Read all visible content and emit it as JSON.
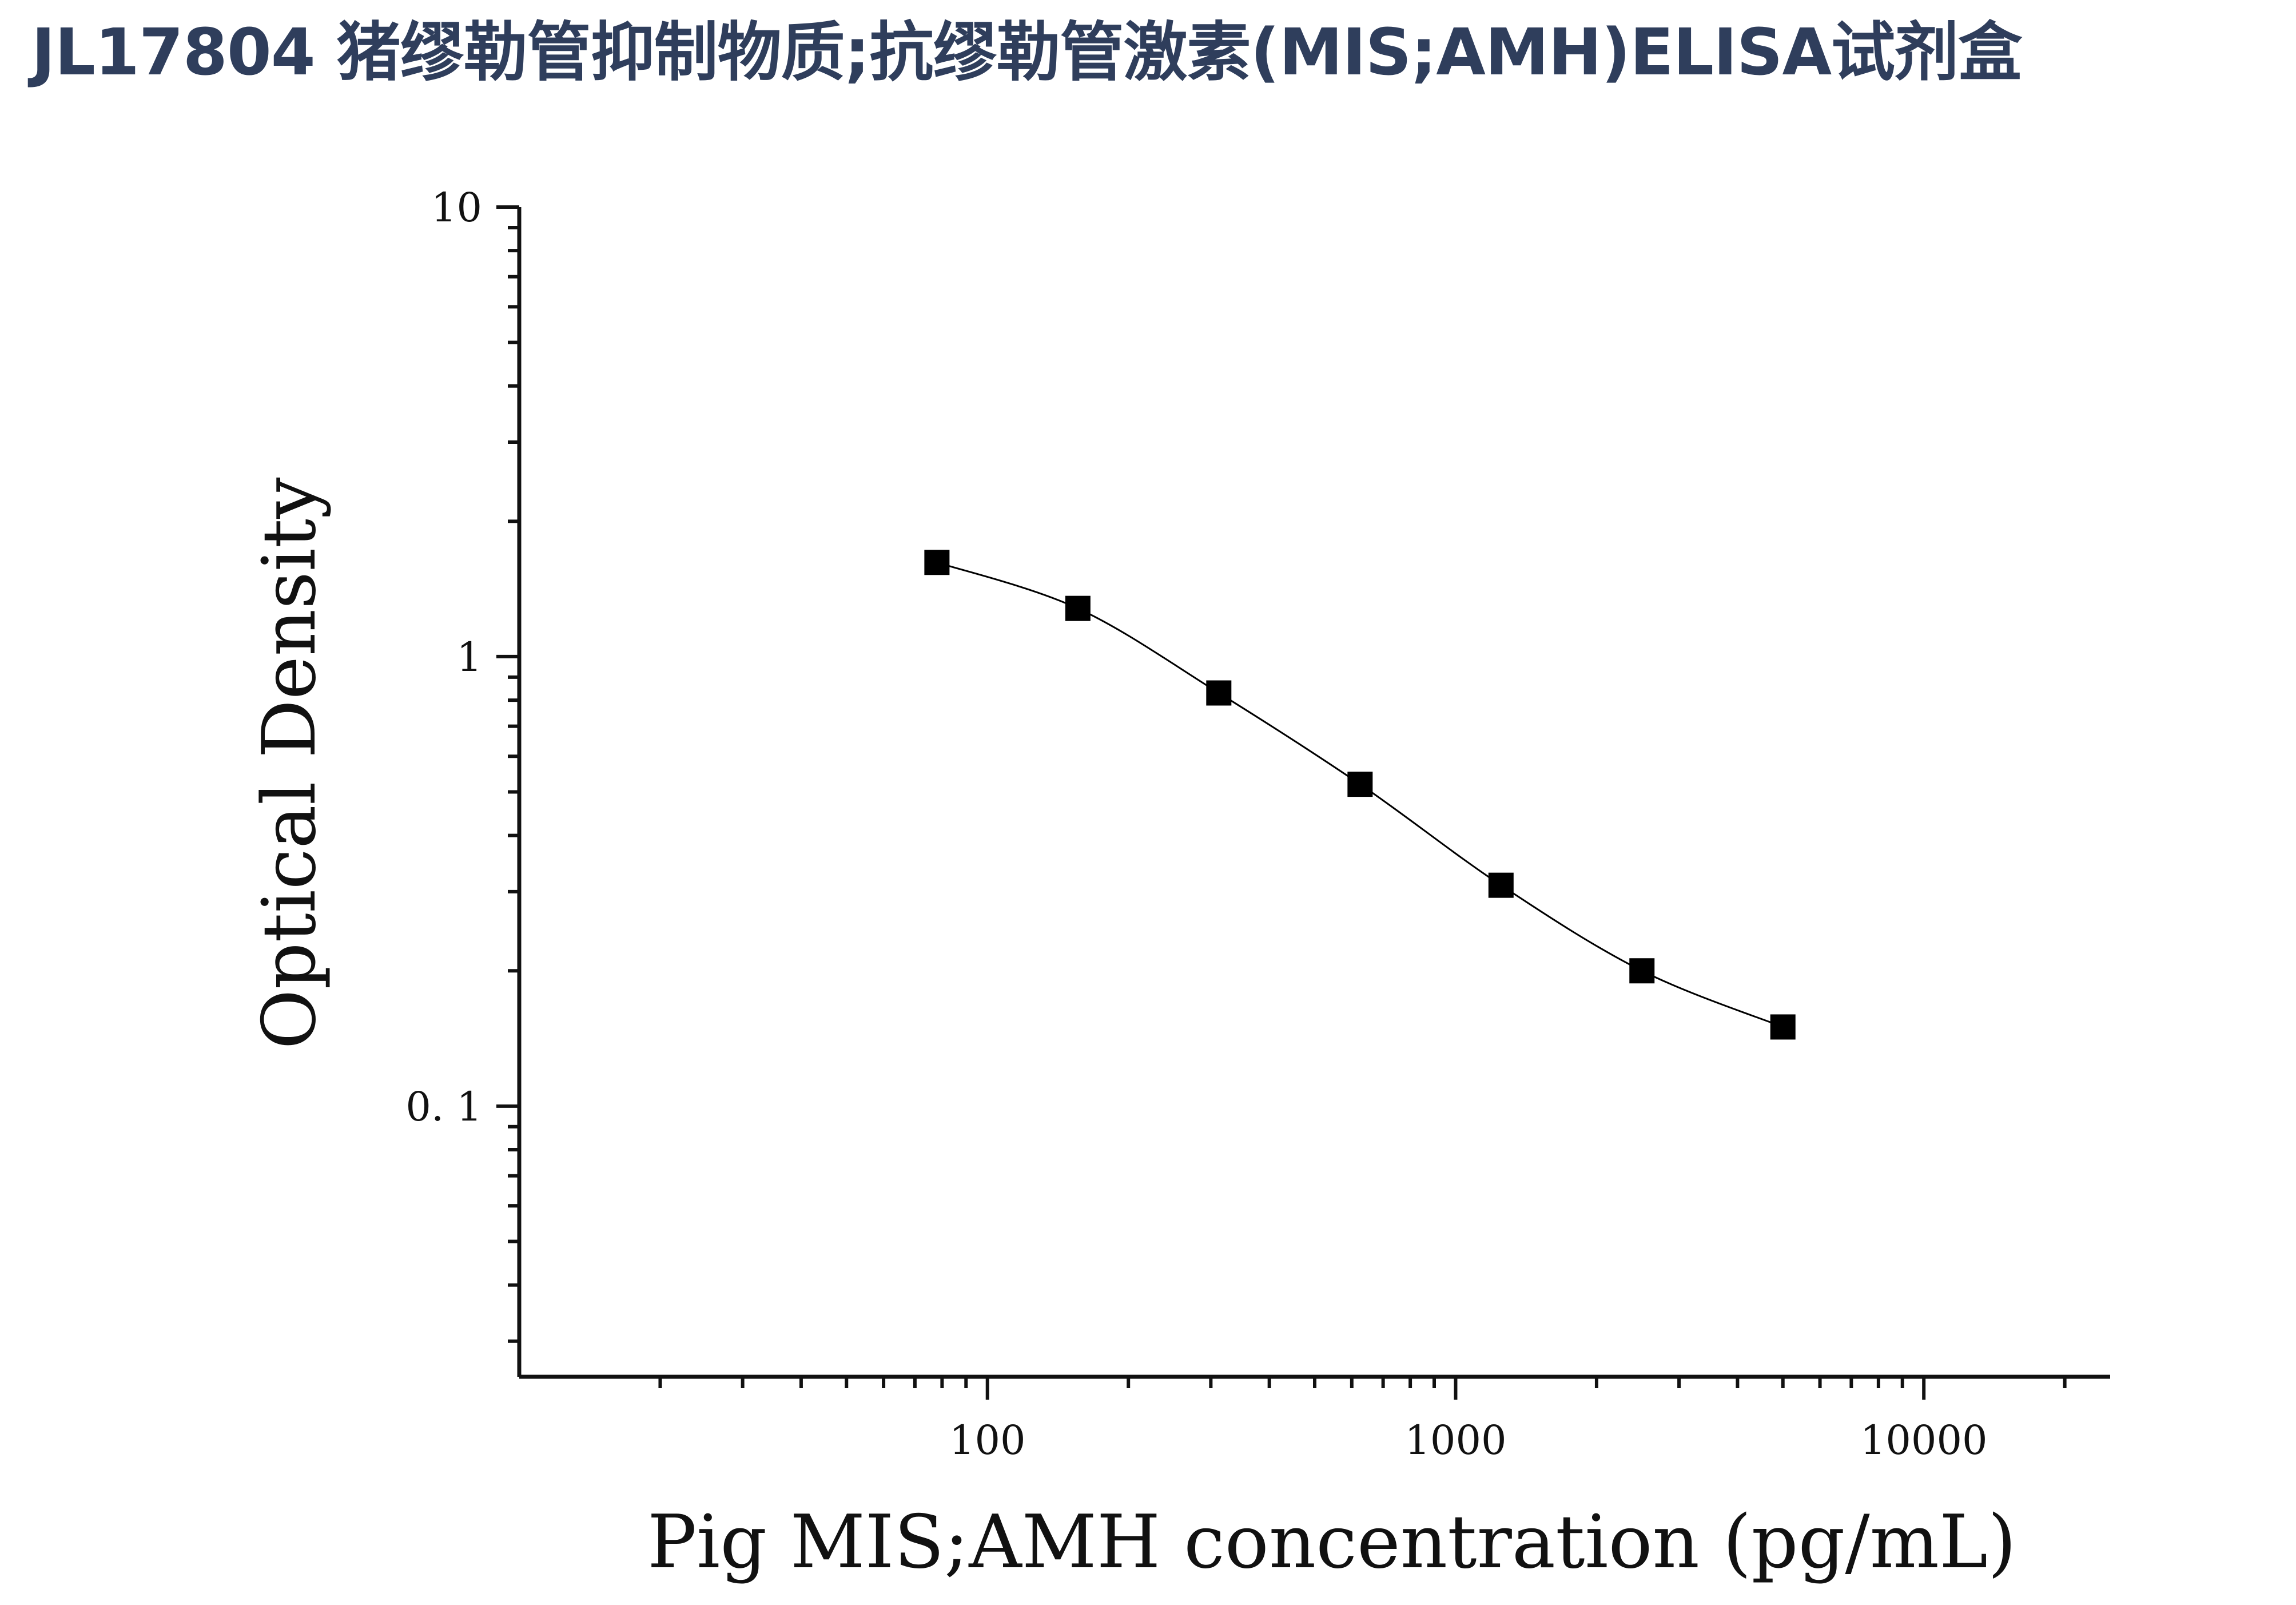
{
  "title": "JL17804 猪缪勒管抑制物质;抗缪勒管激素(MIS;AMH)ELISA试剂盒",
  "chart_data": {
    "type": "scatter",
    "xlabel": "Pig MIS;AMH concentration (pg/mL)",
    "ylabel": "Optical Density",
    "x_scale": "log",
    "y_scale": "log",
    "xlim": [
      10,
      25000
    ],
    "ylim": [
      0.025,
      10
    ],
    "x_ticks": [
      100,
      1000,
      10000
    ],
    "x_tick_labels": [
      "100",
      "1000",
      "10000"
    ],
    "y_ticks": [
      10,
      1,
      0.1
    ],
    "y_tick_labels": [
      "10",
      "1",
      "0. 1"
    ],
    "grid": false,
    "fit_curve": true,
    "marker": "square",
    "marker_color": "#000000",
    "line_color": "#000000",
    "series": [
      {
        "x": [
          78,
          156,
          312,
          625,
          1250,
          2500,
          5000
        ],
        "y": [
          1.62,
          1.28,
          0.83,
          0.52,
          0.31,
          0.2,
          0.15
        ]
      }
    ]
  }
}
